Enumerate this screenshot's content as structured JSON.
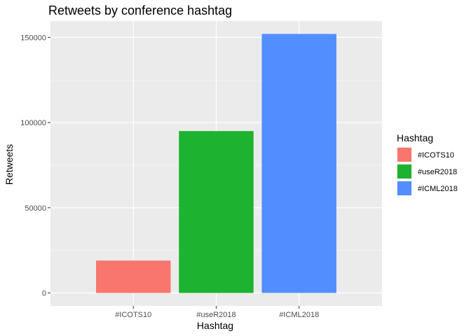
{
  "chart_data": {
    "type": "bar",
    "title": "Retweets by conference hashtag",
    "xlabel": "Hashtag",
    "ylabel": "Retweets",
    "categories": [
      "#ICOTS10",
      "#useR2018",
      "#ICML2018"
    ],
    "values": [
      19000,
      95000,
      152000
    ],
    "colors": [
      "#F8766D",
      "#1DB22F",
      "#528EFF"
    ],
    "ylim": [
      -7600,
      159600
    ],
    "yticks": [
      0,
      50000,
      100000,
      150000
    ],
    "ytick_labels": [
      "0",
      "50000",
      "100000",
      "150000"
    ],
    "grid": true,
    "legend": {
      "title": "Hashtag",
      "position": "right",
      "entries": [
        "#ICOTS10",
        "#useR2018",
        "#ICML2018"
      ]
    }
  }
}
